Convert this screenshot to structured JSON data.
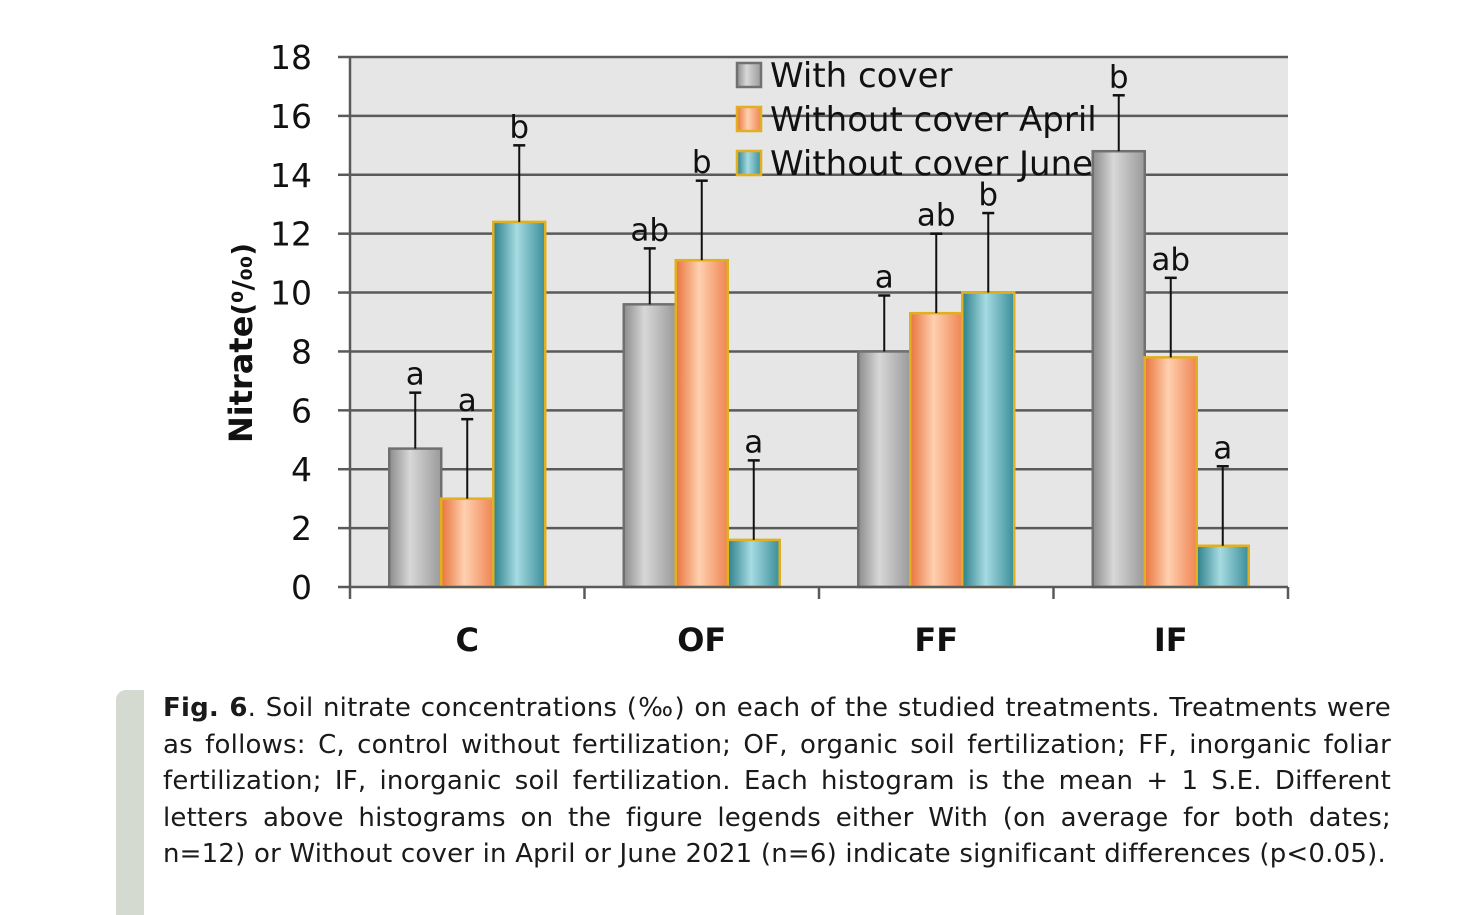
{
  "chart_data": {
    "type": "bar",
    "ylabel": "Nitrate",
    "ylabel_unit": "(⁰/₀₀)",
    "ylim": [
      0,
      18
    ],
    "yticks": [
      0,
      2,
      4,
      6,
      8,
      10,
      12,
      14,
      16,
      18
    ],
    "categories": [
      "C",
      "OF",
      "FF",
      "IF"
    ],
    "series": [
      {
        "name": "With cover",
        "fill": "#b8b8b8",
        "stroke": "#707070",
        "values": [
          4.7,
          9.6,
          8.0,
          14.8
        ],
        "errors": [
          1.9,
          1.9,
          1.9,
          1.9
        ],
        "letters": [
          "a",
          "ab",
          "a",
          "b"
        ]
      },
      {
        "name": "Without cover April",
        "fill": "#f79a6e",
        "stroke": "#e0b020",
        "values": [
          3.0,
          11.1,
          9.3,
          7.8
        ],
        "errors": [
          2.7,
          2.7,
          2.7,
          2.7
        ],
        "letters": [
          "a",
          "b",
          "ab",
          "ab"
        ]
      },
      {
        "name": "Without cover June",
        "fill": "#4ba3ae",
        "stroke": "#e0b020",
        "values": [
          12.4,
          1.6,
          10.0,
          1.4
        ],
        "errors": [
          2.6,
          2.7,
          2.7,
          2.7
        ],
        "letters": [
          "b",
          "a",
          "b",
          "a"
        ]
      }
    ],
    "legend": "top-center",
    "grid": true
  },
  "caption": {
    "label": "Fig. 6",
    "text": ". Soil nitrate concentrations (‰) on each of the studied treatments. Treatments were as follows: C, control without fertilization; OF, organic soil fertilization; FF, inorganic foliar fertilization; IF, inorganic soil fertilization. Each histogram is the mean + 1 S.E. Different letters above histograms on the figure legends either With (on average for both dates; n=12) or Without cover in April or June 2021 (n=6) indicate significant differences (p<0.05)."
  }
}
